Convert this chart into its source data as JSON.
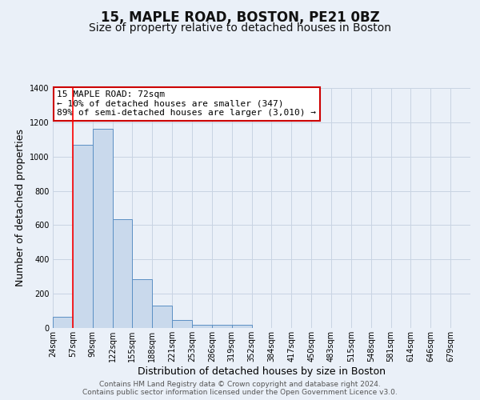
{
  "title": "15, MAPLE ROAD, BOSTON, PE21 0BZ",
  "subtitle": "Size of property relative to detached houses in Boston",
  "xlabel": "Distribution of detached houses by size in Boston",
  "ylabel": "Number of detached properties",
  "footer_line1": "Contains HM Land Registry data © Crown copyright and database right 2024.",
  "footer_line2": "Contains public sector information licensed under the Open Government Licence v3.0.",
  "annotation_title": "15 MAPLE ROAD: 72sqm",
  "annotation_line2": "← 10% of detached houses are smaller (347)",
  "annotation_line3": "89% of semi-detached houses are larger (3,010) →",
  "bar_values": [
    65,
    1070,
    1160,
    635,
    285,
    130,
    48,
    20,
    20,
    20,
    0,
    0,
    0,
    0,
    0,
    0,
    0,
    0,
    0,
    0,
    0
  ],
  "bin_labels": [
    "24sqm",
    "57sqm",
    "90sqm",
    "122sqm",
    "155sqm",
    "188sqm",
    "221sqm",
    "253sqm",
    "286sqm",
    "319sqm",
    "352sqm",
    "384sqm",
    "417sqm",
    "450sqm",
    "483sqm",
    "515sqm",
    "548sqm",
    "581sqm",
    "614sqm",
    "646sqm",
    "679sqm"
  ],
  "bar_color": "#c9d9ec",
  "bar_edge_color": "#5b8fc4",
  "red_line_x": 1,
  "ylim": [
    0,
    1400
  ],
  "yticks": [
    0,
    200,
    400,
    600,
    800,
    1000,
    1200,
    1400
  ],
  "background_color": "#eaf0f8",
  "plot_bg_color": "#eaf0f8",
  "grid_color": "#c8d4e3",
  "annotation_box_color": "#ffffff",
  "annotation_border_color": "#cc0000",
  "title_fontsize": 12,
  "subtitle_fontsize": 10,
  "axis_label_fontsize": 9,
  "tick_fontsize": 7,
  "annotation_fontsize": 8,
  "footer_fontsize": 6.5
}
